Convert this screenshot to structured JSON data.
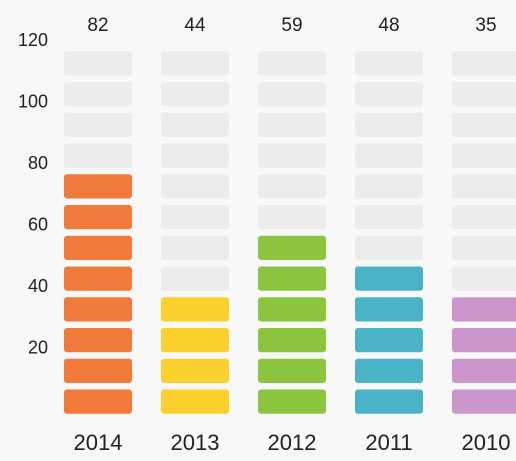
{
  "chart_data": {
    "type": "bar",
    "title": "",
    "xlabel": "",
    "ylabel": "",
    "categories": [
      "2014",
      "2013",
      "2012",
      "2011",
      "2010"
    ],
    "values": [
      82,
      44,
      59,
      48,
      35
    ],
    "value_labels": [
      "82",
      "44",
      "59",
      "48",
      "35"
    ],
    "ylim": [
      0,
      120
    ],
    "y_ticks": [
      20,
      40,
      60,
      80,
      100,
      120
    ],
    "y_tick_labels": [
      "20",
      "40",
      "60",
      "80",
      "100",
      "120"
    ],
    "segments_per_bar": 12,
    "grid": false,
    "legend": "none",
    "colors": {
      "2014": "#f07a3a",
      "2013": "#fbcf2c",
      "2012": "#8bc540",
      "2011": "#4ab3c6",
      "2010": "#cc96cc",
      "empty": "#ececec",
      "background": "#f8f8f8",
      "text": "#222222"
    }
  }
}
